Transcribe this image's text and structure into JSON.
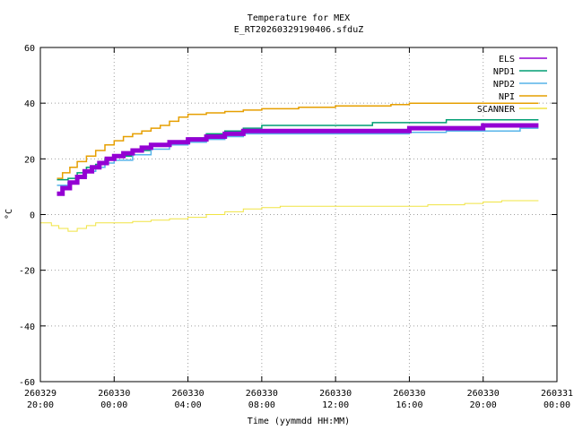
{
  "chart_data": {
    "type": "line",
    "title": "Temperature for MEX",
    "subtitle": "E_RT20260329190406.sfduZ",
    "xlabel": "Time (yymmdd HH:MM)",
    "ylabel": "°C",
    "ylim": [
      -60,
      60
    ],
    "yticks": [
      -60,
      -40,
      -20,
      0,
      20,
      40,
      60
    ],
    "xlim_hours": [
      0,
      28
    ],
    "xticks": [
      {
        "h": 0,
        "date": "260329",
        "time": "20:00"
      },
      {
        "h": 4,
        "date": "260330",
        "time": "00:00"
      },
      {
        "h": 8,
        "date": "260330",
        "time": "04:00"
      },
      {
        "h": 12,
        "date": "260330",
        "time": "08:00"
      },
      {
        "h": 16,
        "date": "260330",
        "time": "12:00"
      },
      {
        "h": 20,
        "date": "260330",
        "time": "16:00"
      },
      {
        "h": 24,
        "date": "260330",
        "time": "20:00"
      },
      {
        "h": 28,
        "date": "260331",
        "time": "00:00"
      }
    ],
    "grid": true,
    "legend_position": "top-right",
    "series": [
      {
        "name": "ELS",
        "color": "#9400d3",
        "x": [
          0.9,
          1.2,
          1.6,
          2.0,
          2.4,
          2.8,
          3.2,
          3.6,
          4.0,
          4.5,
          5.0,
          5.5,
          6.0,
          7.0,
          8.0,
          9.0,
          10.0,
          11.0,
          12.0,
          13.0,
          14.0,
          16.0,
          18.0,
          20.0,
          22.0,
          24.0,
          26.0,
          27.0
        ],
        "y": [
          7.5,
          9.5,
          11.5,
          13.5,
          15.5,
          17,
          18.5,
          20,
          21,
          22,
          23,
          24,
          25,
          26,
          27,
          28,
          29,
          30,
          30,
          30,
          30,
          30,
          30,
          31,
          31,
          32,
          32,
          32
        ]
      },
      {
        "name": "NPD1",
        "color": "#009e73",
        "x": [
          0.9,
          1.5,
          2.0,
          2.5,
          3.0,
          3.5,
          4.0,
          5.0,
          6.0,
          7.0,
          8.0,
          9.0,
          10.0,
          11.0,
          12.0,
          13.0,
          14.0,
          16.0,
          18.0,
          20.0,
          22.0,
          24.0,
          26.0,
          27.0
        ],
        "y": [
          12.5,
          13,
          15,
          17,
          18,
          20,
          21,
          23,
          25,
          26,
          27.5,
          29,
          30,
          31,
          32,
          32,
          32,
          32,
          33,
          33,
          34,
          34,
          34,
          34
        ]
      },
      {
        "name": "NPD2",
        "color": "#56b4e9",
        "x": [
          0.9,
          1.5,
          2.0,
          2.5,
          3.0,
          3.5,
          4.0,
          5.0,
          6.0,
          7.0,
          8.0,
          9.0,
          10.0,
          11.0,
          12.0,
          13.0,
          14.0,
          16.0,
          18.0,
          20.0,
          22.0,
          24.0,
          26.0,
          27.0
        ],
        "y": [
          10.5,
          11.5,
          13.5,
          15.5,
          17,
          18.5,
          19.5,
          21.5,
          23.5,
          25,
          26,
          27,
          28,
          29,
          29,
          29,
          29,
          29,
          29,
          29.5,
          30,
          30,
          31,
          31
        ]
      },
      {
        "name": "NPI",
        "color": "#e69f00",
        "x": [
          0.9,
          1.2,
          1.6,
          2.0,
          2.5,
          3.0,
          3.5,
          4.0,
          4.5,
          5.0,
          5.5,
          6.0,
          6.5,
          7.0,
          7.5,
          8.0,
          9.0,
          10.0,
          11.0,
          12.0,
          13.0,
          14.0,
          15.0,
          16.0,
          17.0,
          18.0,
          19.0,
          20.0,
          21.0,
          22.0,
          23.0,
          24.0,
          25.0,
          26.0,
          27.0
        ],
        "y": [
          13,
          15,
          17,
          19,
          21,
          23,
          25,
          26.5,
          28,
          29,
          30,
          31,
          32,
          33.5,
          35,
          36,
          36.5,
          37,
          37.5,
          38,
          38,
          38.5,
          38.5,
          39,
          39,
          39,
          39.5,
          40,
          40,
          40,
          40,
          40,
          40,
          40,
          40
        ]
      },
      {
        "name": "SCANNER",
        "color": "#f0e442",
        "x": [
          0.0,
          0.6,
          1.0,
          1.5,
          2.0,
          2.5,
          3.0,
          4.0,
          5.0,
          6.0,
          7.0,
          8.0,
          9.0,
          10.0,
          11.0,
          12.0,
          13.0,
          14.0,
          15.0,
          16.0,
          17.0,
          18.0,
          19.0,
          20.0,
          21.0,
          22.0,
          23.0,
          24.0,
          25.0,
          26.0,
          27.0
        ],
        "y": [
          -3,
          -4,
          -5,
          -6,
          -5,
          -4,
          -3,
          -3,
          -2.5,
          -2,
          -1.5,
          -1,
          0,
          1,
          2,
          2.5,
          3,
          3,
          3,
          3,
          3,
          3,
          3,
          3,
          3.5,
          3.5,
          4,
          4.5,
          5,
          5,
          5
        ]
      }
    ]
  }
}
